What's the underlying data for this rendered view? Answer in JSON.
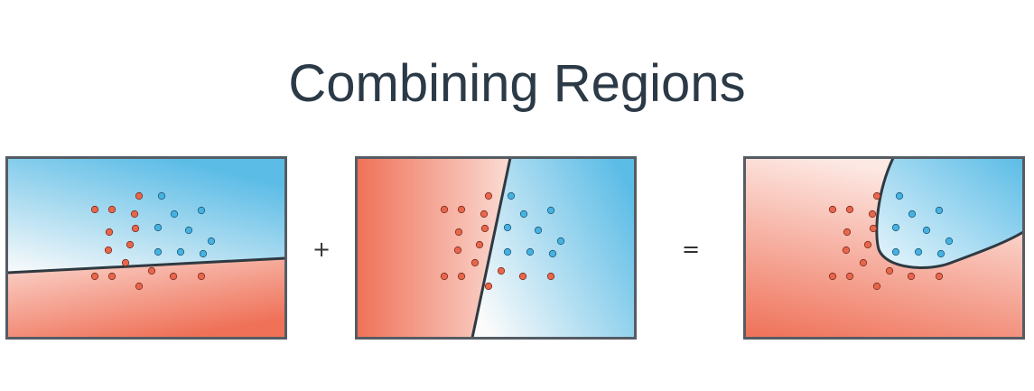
{
  "title": "Combining Regions",
  "operators": {
    "plus": "+",
    "equals": "="
  },
  "colors": {
    "red": "#ef7158",
    "blue": "#5bbce6",
    "light": "#fbe7e2",
    "border": "#444b52"
  },
  "panels": [
    {
      "boundary": "straight line, nearly horizontal"
    },
    {
      "boundary": "straight line, nearly vertical"
    },
    {
      "boundary": "curved boundary"
    }
  ]
}
